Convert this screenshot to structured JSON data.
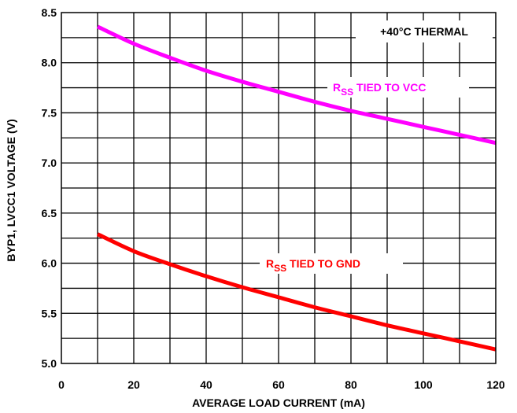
{
  "chart_data": {
    "type": "line",
    "xlabel": "AVERAGE LOAD CURRENT (mA)",
    "ylabel": "BYP1, LVCC1 VOLTAGE (V)",
    "xlim": [
      0,
      120
    ],
    "ylim": [
      5.0,
      8.5
    ],
    "x_ticks": [
      0,
      20,
      40,
      60,
      80,
      100,
      120
    ],
    "x_tick_labels": [
      "0",
      "20",
      "40",
      "60",
      "80",
      "100",
      "120"
    ],
    "y_ticks": [
      5.0,
      5.5,
      6.0,
      6.5,
      7.0,
      7.5,
      8.0,
      8.5
    ],
    "y_tick_labels": [
      "5.0",
      "5.5",
      "6.0",
      "6.5",
      "7.0",
      "7.5",
      "8.0",
      "8.5"
    ],
    "x_minor_step": 10,
    "y_minor_step": 0.25,
    "grid": true,
    "annotation": "+40°C THERMAL",
    "series": [
      {
        "label_main": "R",
        "label_sub": "SS",
        "label_rest": " TIED TO VCC",
        "color": "#ff00ff",
        "x": [
          10,
          20,
          30,
          40,
          50,
          60,
          70,
          80,
          90,
          100,
          110,
          120
        ],
        "y": [
          8.36,
          8.19,
          8.05,
          7.92,
          7.81,
          7.71,
          7.61,
          7.52,
          7.44,
          7.36,
          7.28,
          7.2
        ]
      },
      {
        "label_main": "R",
        "label_sub": "SS",
        "label_rest": " TIED TO GND",
        "color": "#ff0000",
        "x": [
          10,
          20,
          30,
          40,
          50,
          60,
          70,
          80,
          90,
          100,
          110,
          120
        ],
        "y": [
          6.29,
          6.12,
          5.99,
          5.87,
          5.76,
          5.66,
          5.56,
          5.47,
          5.38,
          5.3,
          5.22,
          5.14
        ]
      }
    ]
  }
}
